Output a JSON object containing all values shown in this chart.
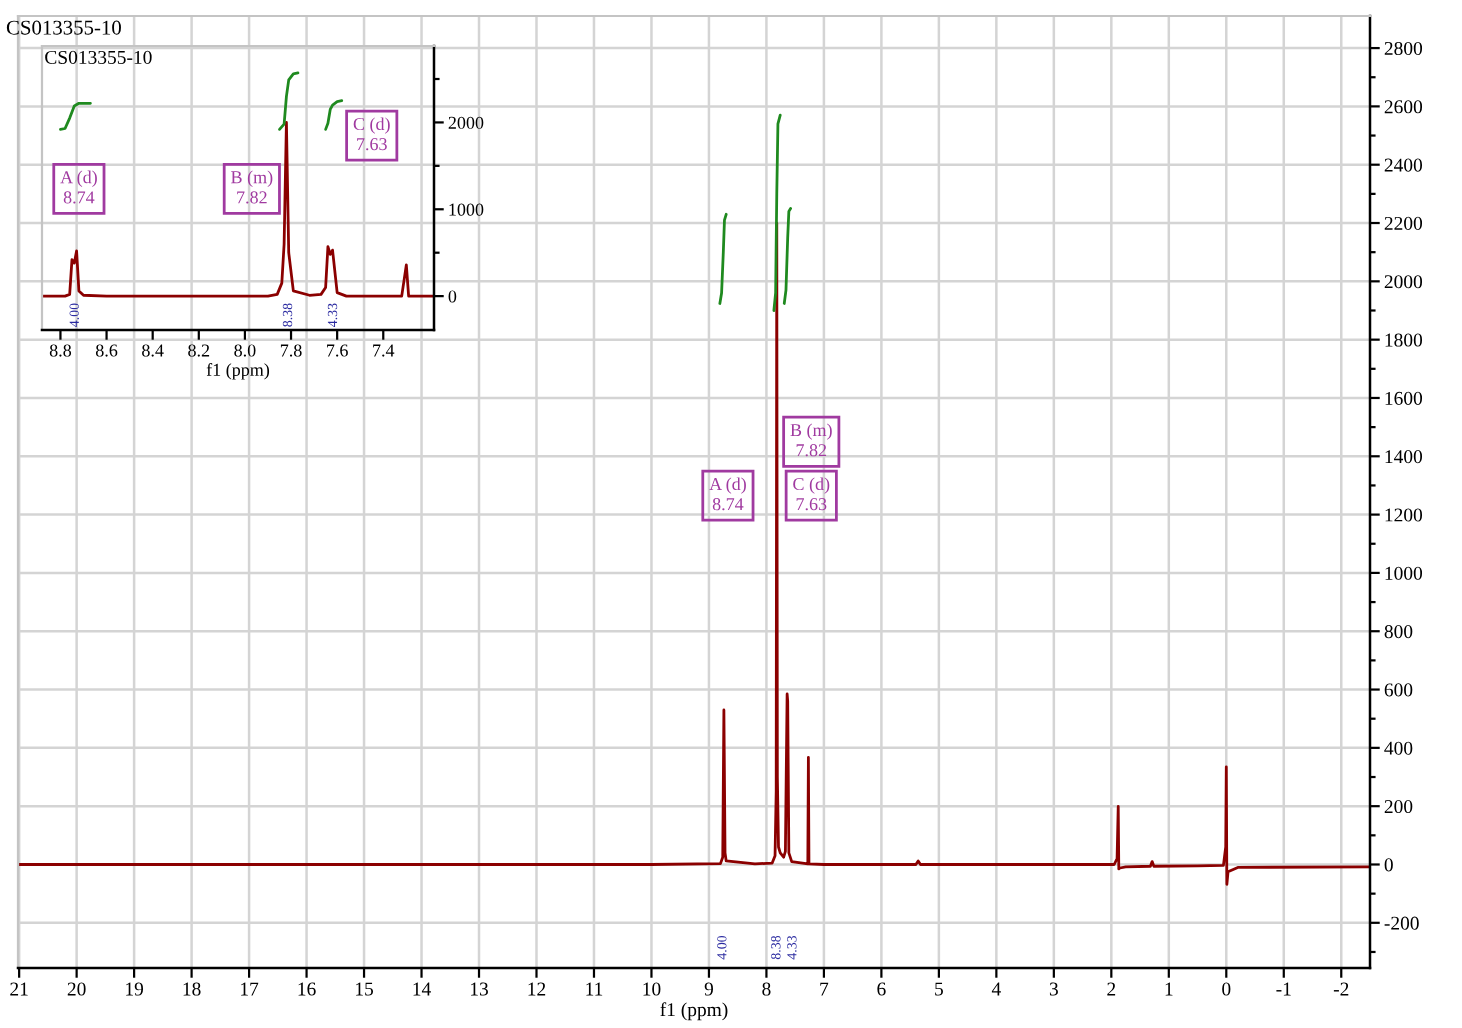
{
  "chart_data": [
    {
      "type": "line",
      "title": "CS013355-10",
      "xlabel": "f1 (ppm)",
      "xlim": [
        21.02,
        -2.5
      ],
      "xticks": [
        21,
        20,
        19,
        18,
        17,
        16,
        15,
        14,
        13,
        12,
        11,
        10,
        9,
        8,
        7,
        6,
        5,
        4,
        3,
        2,
        1,
        0,
        -1,
        -2
      ],
      "ylim": [
        -355,
        2910
      ],
      "yticks": [
        {
          "value": -300,
          "label": null
        },
        -200,
        {
          "value": -100,
          "label": null
        },
        0,
        {
          "value": 100,
          "label": null
        },
        200,
        {
          "value": 300,
          "label": null
        },
        400,
        {
          "value": 500,
          "label": null
        },
        600,
        {
          "value": 700,
          "label": null
        },
        800,
        {
          "value": 900,
          "label": null
        },
        1000,
        {
          "value": 1100,
          "label": null
        },
        1200,
        {
          "value": 1300,
          "label": null
        },
        1400,
        {
          "value": 1500,
          "label": null
        },
        1600,
        {
          "value": 1700,
          "label": null
        },
        1800,
        {
          "value": 1900,
          "label": null
        },
        2000,
        {
          "value": 2100,
          "label": null
        },
        2200,
        {
          "value": 2300,
          "label": null
        },
        2400,
        {
          "value": 2500,
          "label": null
        },
        2600,
        {
          "value": 2700,
          "label": null
        },
        2800
      ],
      "grid": true,
      "series": [
        {
          "color": "#8b0000",
          "x": [
            21.02,
            10.0,
            8.8,
            8.76,
            8.74,
            8.72,
            8.7,
            8.2,
            7.9,
            7.85,
            7.83,
            7.82,
            7.81,
            7.79,
            7.76,
            7.7,
            7.67,
            7.64,
            7.63,
            7.61,
            7.56,
            7.28,
            7.27,
            7.26,
            7.0,
            5.4,
            5.36,
            5.32,
            3.0,
            1.95,
            1.9,
            1.88,
            1.87,
            1.85,
            1.75,
            1.32,
            1.29,
            1.26,
            0.5,
            0.05,
            0.01,
            0.0,
            -0.01,
            -0.03,
            -0.2,
            -2.5
          ],
          "values": [
            0,
            0,
            3,
            25,
            530,
            40,
            12,
            2,
            5,
            30,
            250,
            2200,
            300,
            60,
            40,
            25,
            45,
            585,
            560,
            40,
            10,
            2,
            367,
            2,
            0,
            0,
            12,
            0,
            0,
            0,
            20,
            199,
            -15,
            -12,
            -8,
            -6,
            10,
            -6,
            -5,
            -3,
            60,
            335,
            -68,
            -25,
            -10,
            -8
          ]
        },
        {
          "color": "#1f8a1f",
          "x": [
            8.81,
            8.78,
            8.75,
            8.73,
            8.7
          ],
          "values": [
            1924,
            1960,
            2100,
            2210,
            2230
          ]
        },
        {
          "color": "#1f8a1f",
          "x": [
            7.87,
            7.84,
            7.82,
            7.8,
            7.76
          ],
          "values": [
            1900,
            1960,
            2300,
            2540,
            2570
          ]
        },
        {
          "color": "#1f8a1f",
          "x": [
            7.69,
            7.66,
            7.63,
            7.61,
            7.58
          ],
          "values": [
            1924,
            1970,
            2150,
            2240,
            2250
          ]
        }
      ],
      "annotations": [
        {
          "text": "A (d)\n8.74",
          "x": 8.67,
          "y": 1265
        },
        {
          "text": "B (m)\n7.82",
          "x": 7.22,
          "y": 1450
        },
        {
          "text": "C (d)\n7.63",
          "x": 7.22,
          "y": 1265
        },
        "4.00",
        "8.38",
        "4.33"
      ]
    },
    {
      "type": "line",
      "title": "CS013355-10",
      "xlabel": "f1 (ppm)",
      "xlim": [
        8.88,
        7.18
      ],
      "xticks": [
        8.8,
        8.6,
        8.4,
        8.2,
        {
          "value": 8,
          "label": "8.0"
        },
        7.8,
        7.6,
        7.4
      ],
      "ylim": [
        -390,
        2880
      ],
      "yticks": [
        0,
        {
          "value": 500,
          "label": null
        },
        1000,
        {
          "value": 1500,
          "label": null
        },
        2000,
        {
          "value": 2500,
          "label": null
        }
      ],
      "series": [
        {
          "color": "#8b0000",
          "x": [
            8.88,
            8.78,
            8.76,
            8.75,
            8.74,
            8.73,
            8.72,
            8.7,
            8.6,
            7.9,
            7.86,
            7.84,
            7.83,
            7.82,
            7.81,
            7.79,
            7.72,
            7.67,
            7.65,
            7.64,
            7.63,
            7.62,
            7.6,
            7.56,
            7.32,
            7.3,
            7.29,
            7.18
          ],
          "values": [
            0,
            0,
            20,
            420,
            380,
            520,
            60,
            10,
            0,
            0,
            20,
            150,
            600,
            2000,
            500,
            60,
            10,
            20,
            100,
            570,
            480,
            530,
            40,
            0,
            0,
            360,
            0,
            0
          ]
        },
        {
          "color": "#1f8a1f",
          "x": [
            8.8,
            8.78,
            8.76,
            8.74,
            8.72,
            8.67
          ],
          "values": [
            1920,
            1930,
            2050,
            2190,
            2220,
            2220
          ]
        },
        {
          "color": "#1f8a1f",
          "x": [
            7.85,
            7.83,
            7.82,
            7.81,
            7.79,
            7.77
          ],
          "values": [
            1920,
            1980,
            2300,
            2490,
            2560,
            2570
          ]
        },
        {
          "color": "#1f8a1f",
          "x": [
            7.65,
            7.64,
            7.63,
            7.62,
            7.6,
            7.58
          ],
          "values": [
            1920,
            1990,
            2150,
            2200,
            2240,
            2250
          ]
        }
      ],
      "annotations": [
        {
          "text": "A (d)\n8.74",
          "x": 8.72,
          "y": 1235
        },
        {
          "text": "B (m)\n7.82",
          "x": 7.97,
          "y": 1235
        },
        {
          "text": "C (d)\n7.63",
          "x": 7.45,
          "y": 1848
        },
        "4.00",
        "8.38",
        "4.33"
      ]
    }
  ]
}
